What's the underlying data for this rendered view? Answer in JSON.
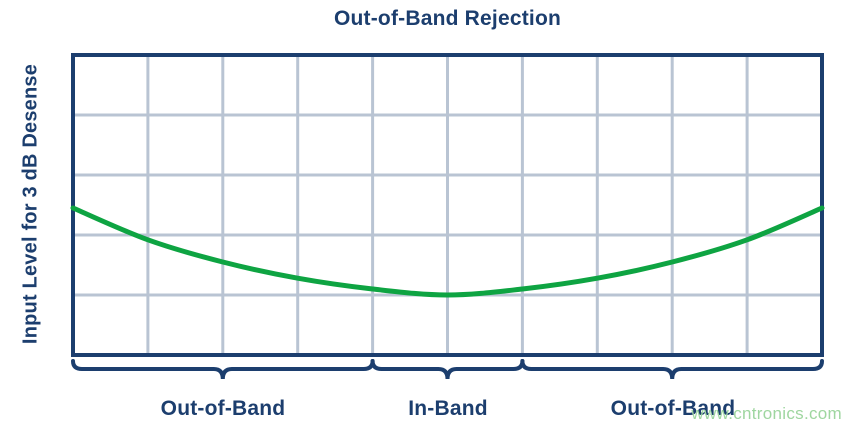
{
  "page": {
    "watermark": "www.cntronics.com"
  },
  "chart_data": {
    "type": "line",
    "title": "Out-of-Band Rejection",
    "xlabel": "",
    "ylabel": "Input Level for 3 dB Desense",
    "xlim": [
      0,
      10
    ],
    "ylim": [
      0,
      5
    ],
    "grid": {
      "on": true,
      "columns": 10,
      "rows": 5
    },
    "tick_labels": "none",
    "legend": "none",
    "series": [
      {
        "name": "input-level-for-3db-desense",
        "x": [
          0,
          1,
          2,
          3,
          4,
          5,
          6,
          7,
          8,
          9,
          10
        ],
        "y": [
          2.45,
          1.92,
          1.55,
          1.28,
          1.1,
          1.0,
          1.1,
          1.28,
          1.55,
          1.92,
          2.45
        ]
      }
    ],
    "regions": [
      {
        "label": "Out-of-Band",
        "x0": 0,
        "x1": 4
      },
      {
        "label": "In-Band",
        "x0": 4,
        "x1": 6
      },
      {
        "label": "Out-of-Band",
        "x0": 6,
        "x1": 10
      }
    ],
    "colors": {
      "frame": "#1c3e6e",
      "grid": "#b9c4d3",
      "curve": "#0ea442",
      "text": "#1c3e6e",
      "watermark": "#9fd6a0"
    }
  }
}
